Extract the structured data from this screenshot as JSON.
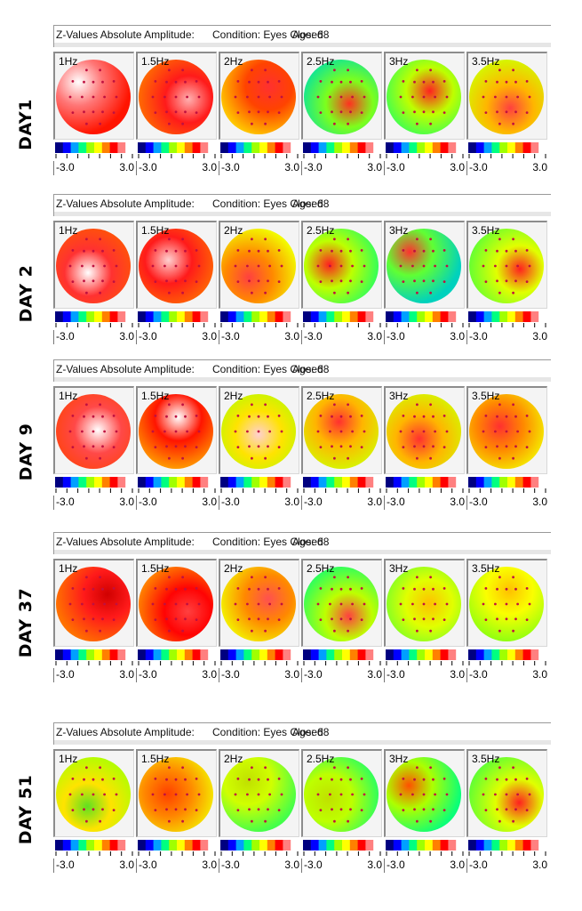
{
  "header": {
    "measure": "Z-Values Absolute Amplitude:",
    "condition": "Condition: Eyes Closed",
    "age": "Age:  68"
  },
  "scale": {
    "min": "-3.0",
    "max": "3.0"
  },
  "frequencies": [
    "1Hz",
    "1.5Hz",
    "2Hz",
    "2.5Hz",
    "3Hz",
    "3.5Hz"
  ],
  "colormap": [
    "#000080",
    "#0000ff",
    "#00a0ff",
    "#00ff80",
    "#a0ff00",
    "#ffff00",
    "#ff8000",
    "#ff0000",
    "#ff8080",
    "#ffffff"
  ],
  "days": [
    {
      "label": "DAY1",
      "maps": [
        {
          "level": 0.88,
          "accent": "#ffffff"
        },
        {
          "level": 0.8,
          "accent": "#ffb0b0"
        },
        {
          "level": 0.72,
          "accent": "#ff3030"
        },
        {
          "level": 0.42,
          "accent": "#ff3020"
        },
        {
          "level": 0.48,
          "accent": "#ff2020"
        },
        {
          "level": 0.62,
          "accent": "#ff4040"
        }
      ]
    },
    {
      "label": "DAY 2",
      "maps": [
        {
          "level": 0.82,
          "accent": "#ffffff"
        },
        {
          "level": 0.8,
          "accent": "#ffd0d0"
        },
        {
          "level": 0.66,
          "accent": "#ff4040"
        },
        {
          "level": 0.48,
          "accent": "#ff2020"
        },
        {
          "level": 0.4,
          "accent": "#ff3030"
        },
        {
          "level": 0.52,
          "accent": "#ff2020"
        }
      ]
    },
    {
      "label": "DAY 9",
      "maps": [
        {
          "level": 0.84,
          "accent": "#ffffff"
        },
        {
          "level": 0.76,
          "accent": "#ffffff"
        },
        {
          "level": 0.58,
          "accent": "#ffd0d0"
        },
        {
          "level": 0.62,
          "accent": "#ff3030"
        },
        {
          "level": 0.62,
          "accent": "#ff3030"
        },
        {
          "level": 0.66,
          "accent": "#ff3030"
        }
      ]
    },
    {
      "label": "DAY 37",
      "maps": [
        {
          "level": 0.8,
          "accent": "#d00000"
        },
        {
          "level": 0.78,
          "accent": "#ff4040"
        },
        {
          "level": 0.66,
          "accent": "#ff5050"
        },
        {
          "level": 0.48,
          "accent": "#ff4040"
        },
        {
          "level": 0.52,
          "accent": "#ffc000"
        },
        {
          "level": 0.55,
          "accent": "#ffc000"
        }
      ]
    },
    {
      "label": "DAY 51",
      "maps": [
        {
          "level": 0.58,
          "accent": "#60e020"
        },
        {
          "level": 0.66,
          "accent": "#ff4000"
        },
        {
          "level": 0.5,
          "accent": "#c0e000"
        },
        {
          "level": 0.48,
          "accent": "#c0e000"
        },
        {
          "level": 0.46,
          "accent": "#ff5000"
        },
        {
          "level": 0.52,
          "accent": "#ff2020"
        }
      ]
    }
  ]
}
